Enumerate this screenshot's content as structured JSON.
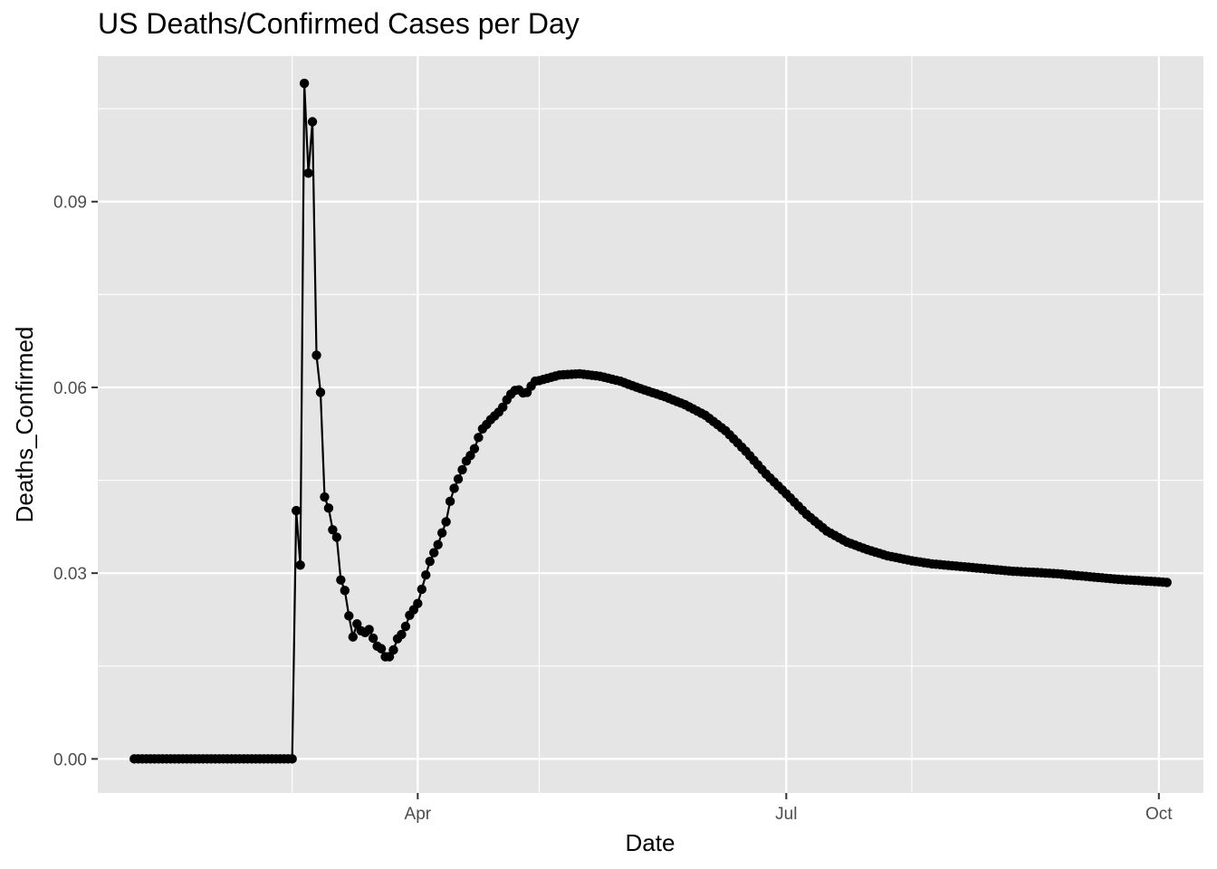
{
  "chart_data": {
    "type": "line",
    "title": "US Deaths/Confirmed Cases per Day",
    "xlabel": "Date",
    "ylabel": "Deaths_Confirmed",
    "x_type": "date",
    "xlim": [
      "2020-01-13",
      "2020-10-12"
    ],
    "ylim": [
      -0.0055,
      0.1135
    ],
    "x_ticks": [
      {
        "date": "2020-04-01",
        "label": "Apr"
      },
      {
        "date": "2020-07-01",
        "label": "Jul"
      },
      {
        "date": "2020-10-01",
        "label": "Oct"
      }
    ],
    "x_minor_ticks": [
      "2020-03-01",
      "2020-05-01",
      "2020-08-01"
    ],
    "y_ticks": [
      {
        "value": 0,
        "label": "0.00"
      },
      {
        "value": 0.03,
        "label": "0.03"
      },
      {
        "value": 0.06,
        "label": "0.06"
      },
      {
        "value": 0.09,
        "label": "0.09"
      }
    ],
    "y_minor_ticks": [
      0.015,
      0.045,
      0.075,
      0.105
    ],
    "grid": true,
    "colors": {
      "panel": "#e5e5e5",
      "grid": "#ffffff",
      "line": "#000000",
      "point": "#000000"
    },
    "series": [
      {
        "x": [
          "2020-01-22",
          "2020-03-01",
          "2020-03-02",
          "2020-03-03",
          "2020-03-04",
          "2020-03-05",
          "2020-03-06",
          "2020-03-07",
          "2020-03-08",
          "2020-03-09",
          "2020-03-10",
          "2020-03-11",
          "2020-03-12",
          "2020-03-13",
          "2020-03-14",
          "2020-03-15",
          "2020-03-16",
          "2020-03-17",
          "2020-03-18",
          "2020-03-19",
          "2020-03-20",
          "2020-03-21",
          "2020-03-22",
          "2020-03-23",
          "2020-03-24",
          "2020-03-25",
          "2020-03-26",
          "2020-03-27",
          "2020-03-28",
          "2020-03-29",
          "2020-03-30",
          "2020-03-31",
          "2020-04-01",
          "2020-04-02",
          "2020-04-03",
          "2020-04-04",
          "2020-04-05",
          "2020-04-06",
          "2020-04-07",
          "2020-04-08",
          "2020-04-09",
          "2020-04-10",
          "2020-04-11",
          "2020-04-12",
          "2020-04-13",
          "2020-04-14",
          "2020-04-15",
          "2020-04-16",
          "2020-04-17",
          "2020-04-18",
          "2020-04-19",
          "2020-04-20",
          "2020-04-21",
          "2020-04-22",
          "2020-04-23",
          "2020-04-24",
          "2020-04-25",
          "2020-04-26",
          "2020-04-27",
          "2020-04-28",
          "2020-04-29",
          "2020-04-30",
          "2020-05-01",
          "2020-05-06",
          "2020-05-11",
          "2020-05-16",
          "2020-05-21",
          "2020-05-26",
          "2020-06-01",
          "2020-06-06",
          "2020-06-11",
          "2020-06-16",
          "2020-06-21",
          "2020-06-26",
          "2020-07-01",
          "2020-07-06",
          "2020-07-11",
          "2020-07-16",
          "2020-07-21",
          "2020-07-26",
          "2020-08-01",
          "2020-08-06",
          "2020-08-11",
          "2020-08-16",
          "2020-08-21",
          "2020-08-26",
          "2020-09-01",
          "2020-09-06",
          "2020-09-11",
          "2020-09-16",
          "2020-09-21",
          "2020-09-26",
          "2020-10-01",
          "2020-10-03"
        ],
        "y": [
          0,
          0,
          0.0401,
          0.0313,
          0.1091,
          0.0946,
          0.1029,
          0.0652,
          0.0592,
          0.0423,
          0.0405,
          0.037,
          0.0358,
          0.0289,
          0.0272,
          0.0231,
          0.0197,
          0.0218,
          0.0207,
          0.0204,
          0.0209,
          0.0195,
          0.0182,
          0.0178,
          0.0165,
          0.0165,
          0.0176,
          0.0194,
          0.0201,
          0.0214,
          0.0232,
          0.0241,
          0.0251,
          0.0274,
          0.0297,
          0.0319,
          0.0333,
          0.0346,
          0.0365,
          0.0383,
          0.0416,
          0.0437,
          0.0452,
          0.0467,
          0.0481,
          0.049,
          0.0501,
          0.0519,
          0.0533,
          0.054,
          0.0548,
          0.0554,
          0.056,
          0.0568,
          0.058,
          0.0589,
          0.0595,
          0.0596,
          0.0591,
          0.0592,
          0.0602,
          0.061,
          0.0611,
          0.062,
          0.0622,
          0.0618,
          0.061,
          0.0598,
          0.0585,
          0.0572,
          0.0555,
          0.053,
          0.0497,
          0.046,
          0.0428,
          0.0395,
          0.0368,
          0.035,
          0.0338,
          0.0328,
          0.032,
          0.0315,
          0.0312,
          0.0309,
          0.0306,
          0.0303,
          0.0301,
          0.0299,
          0.0296,
          0.0293,
          0.029,
          0.0288,
          0.0286,
          0.0285
        ]
      }
    ]
  }
}
